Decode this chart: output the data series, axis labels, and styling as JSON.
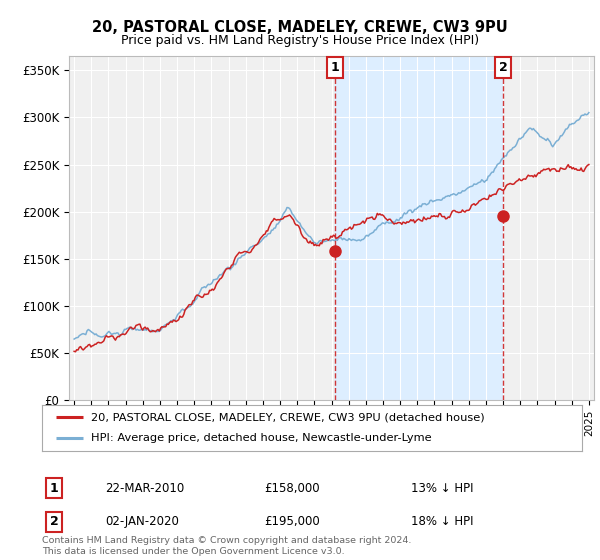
{
  "title": "20, PASTORAL CLOSE, MADELEY, CREWE, CW3 9PU",
  "subtitle": "Price paid vs. HM Land Registry's House Price Index (HPI)",
  "title_fontsize": 10.5,
  "subtitle_fontsize": 9,
  "ylabel_ticks": [
    "£0",
    "£50K",
    "£100K",
    "£150K",
    "£200K",
    "£250K",
    "£300K",
    "£350K"
  ],
  "ytick_values": [
    0,
    50000,
    100000,
    150000,
    200000,
    250000,
    300000,
    350000
  ],
  "ylim": [
    0,
    365000
  ],
  "xlim_start": 1994.7,
  "xlim_end": 2025.3,
  "hpi_color": "#7bafd4",
  "price_color": "#cc2222",
  "marker1_x": 2010.22,
  "marker1_y": 158000,
  "marker2_x": 2020.01,
  "marker2_y": 195000,
  "legend_label1": "20, PASTORAL CLOSE, MADELEY, CREWE, CW3 9PU (detached house)",
  "legend_label2": "HPI: Average price, detached house, Newcastle-under-Lyme",
  "ann1_date": "22-MAR-2010",
  "ann1_price": "£158,000",
  "ann1_hpi": "13% ↓ HPI",
  "ann2_date": "02-JAN-2020",
  "ann2_price": "£195,000",
  "ann2_hpi": "18% ↓ HPI",
  "footer": "Contains HM Land Registry data © Crown copyright and database right 2024.\nThis data is licensed under the Open Government Licence v3.0.",
  "background_color": "#ffffff",
  "plot_bg_color": "#f0f0f0",
  "shade_color": "#ddeeff",
  "grid_color": "#ffffff"
}
